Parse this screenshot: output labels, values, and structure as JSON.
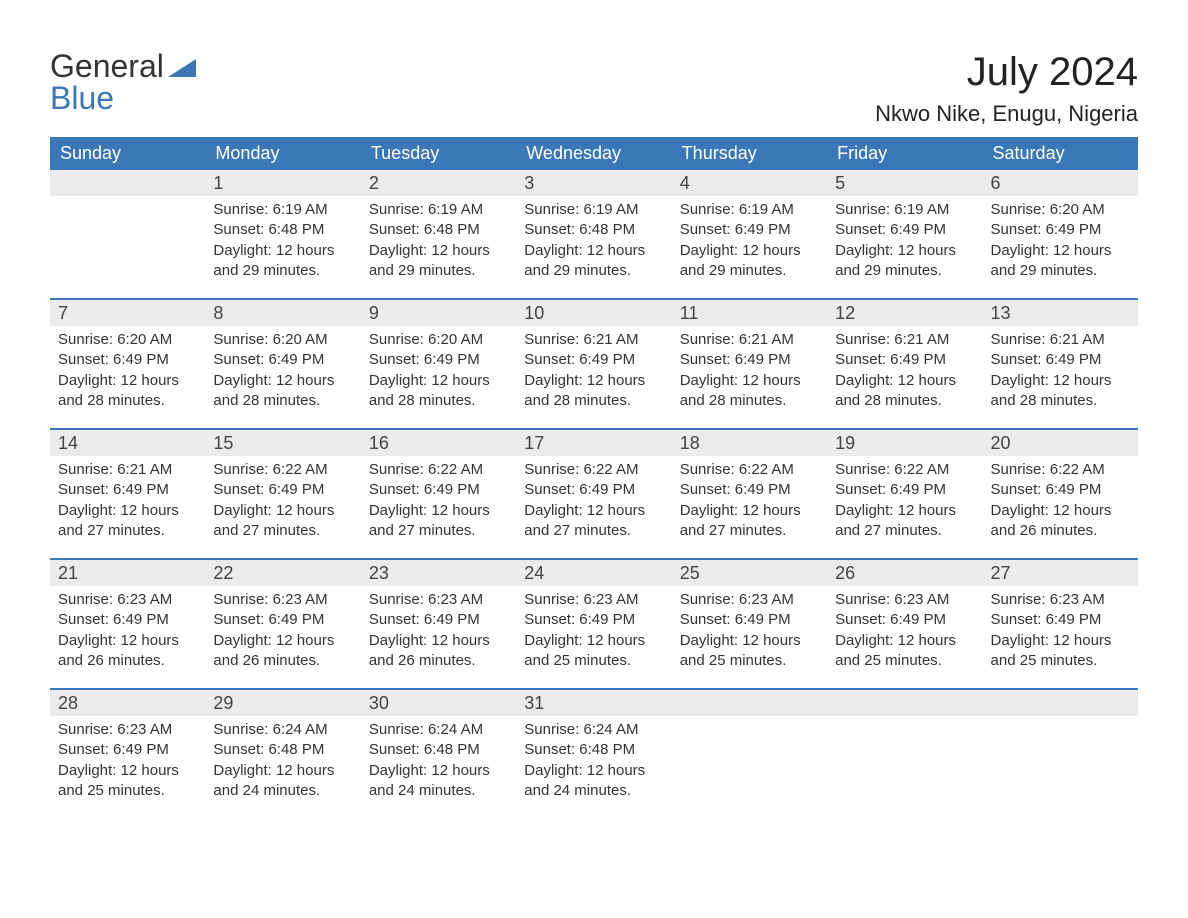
{
  "branding": {
    "logo_word1": "General",
    "logo_word2": "Blue",
    "logo_word1_color": "#333333",
    "logo_word2_color": "#3a77b7",
    "logo_triangle_color": "#3a77b7"
  },
  "header": {
    "month_title": "July 2024",
    "location": "Nkwo Nike, Enugu, Nigeria"
  },
  "styling": {
    "header_bg": "#3a77b7",
    "header_text_color": "#ffffff",
    "daynum_bg": "#ebebeb",
    "daynum_color": "#444444",
    "body_text_color": "#333333",
    "week_border_color": "#3a77b7",
    "page_bg": "#ffffff",
    "month_title_fontsize": 40,
    "location_fontsize": 22,
    "dayheader_fontsize": 18,
    "cell_fontsize": 15
  },
  "day_names": [
    "Sunday",
    "Monday",
    "Tuesday",
    "Wednesday",
    "Thursday",
    "Friday",
    "Saturday"
  ],
  "weeks": [
    [
      {
        "day": "",
        "sunrise": "",
        "sunset": "",
        "daylight": ""
      },
      {
        "day": "1",
        "sunrise": "Sunrise: 6:19 AM",
        "sunset": "Sunset: 6:48 PM",
        "daylight": "Daylight: 12 hours and 29 minutes."
      },
      {
        "day": "2",
        "sunrise": "Sunrise: 6:19 AM",
        "sunset": "Sunset: 6:48 PM",
        "daylight": "Daylight: 12 hours and 29 minutes."
      },
      {
        "day": "3",
        "sunrise": "Sunrise: 6:19 AM",
        "sunset": "Sunset: 6:48 PM",
        "daylight": "Daylight: 12 hours and 29 minutes."
      },
      {
        "day": "4",
        "sunrise": "Sunrise: 6:19 AM",
        "sunset": "Sunset: 6:49 PM",
        "daylight": "Daylight: 12 hours and 29 minutes."
      },
      {
        "day": "5",
        "sunrise": "Sunrise: 6:19 AM",
        "sunset": "Sunset: 6:49 PM",
        "daylight": "Daylight: 12 hours and 29 minutes."
      },
      {
        "day": "6",
        "sunrise": "Sunrise: 6:20 AM",
        "sunset": "Sunset: 6:49 PM",
        "daylight": "Daylight: 12 hours and 29 minutes."
      }
    ],
    [
      {
        "day": "7",
        "sunrise": "Sunrise: 6:20 AM",
        "sunset": "Sunset: 6:49 PM",
        "daylight": "Daylight: 12 hours and 28 minutes."
      },
      {
        "day": "8",
        "sunrise": "Sunrise: 6:20 AM",
        "sunset": "Sunset: 6:49 PM",
        "daylight": "Daylight: 12 hours and 28 minutes."
      },
      {
        "day": "9",
        "sunrise": "Sunrise: 6:20 AM",
        "sunset": "Sunset: 6:49 PM",
        "daylight": "Daylight: 12 hours and 28 minutes."
      },
      {
        "day": "10",
        "sunrise": "Sunrise: 6:21 AM",
        "sunset": "Sunset: 6:49 PM",
        "daylight": "Daylight: 12 hours and 28 minutes."
      },
      {
        "day": "11",
        "sunrise": "Sunrise: 6:21 AM",
        "sunset": "Sunset: 6:49 PM",
        "daylight": "Daylight: 12 hours and 28 minutes."
      },
      {
        "day": "12",
        "sunrise": "Sunrise: 6:21 AM",
        "sunset": "Sunset: 6:49 PM",
        "daylight": "Daylight: 12 hours and 28 minutes."
      },
      {
        "day": "13",
        "sunrise": "Sunrise: 6:21 AM",
        "sunset": "Sunset: 6:49 PM",
        "daylight": "Daylight: 12 hours and 28 minutes."
      }
    ],
    [
      {
        "day": "14",
        "sunrise": "Sunrise: 6:21 AM",
        "sunset": "Sunset: 6:49 PM",
        "daylight": "Daylight: 12 hours and 27 minutes."
      },
      {
        "day": "15",
        "sunrise": "Sunrise: 6:22 AM",
        "sunset": "Sunset: 6:49 PM",
        "daylight": "Daylight: 12 hours and 27 minutes."
      },
      {
        "day": "16",
        "sunrise": "Sunrise: 6:22 AM",
        "sunset": "Sunset: 6:49 PM",
        "daylight": "Daylight: 12 hours and 27 minutes."
      },
      {
        "day": "17",
        "sunrise": "Sunrise: 6:22 AM",
        "sunset": "Sunset: 6:49 PM",
        "daylight": "Daylight: 12 hours and 27 minutes."
      },
      {
        "day": "18",
        "sunrise": "Sunrise: 6:22 AM",
        "sunset": "Sunset: 6:49 PM",
        "daylight": "Daylight: 12 hours and 27 minutes."
      },
      {
        "day": "19",
        "sunrise": "Sunrise: 6:22 AM",
        "sunset": "Sunset: 6:49 PM",
        "daylight": "Daylight: 12 hours and 27 minutes."
      },
      {
        "day": "20",
        "sunrise": "Sunrise: 6:22 AM",
        "sunset": "Sunset: 6:49 PM",
        "daylight": "Daylight: 12 hours and 26 minutes."
      }
    ],
    [
      {
        "day": "21",
        "sunrise": "Sunrise: 6:23 AM",
        "sunset": "Sunset: 6:49 PM",
        "daylight": "Daylight: 12 hours and 26 minutes."
      },
      {
        "day": "22",
        "sunrise": "Sunrise: 6:23 AM",
        "sunset": "Sunset: 6:49 PM",
        "daylight": "Daylight: 12 hours and 26 minutes."
      },
      {
        "day": "23",
        "sunrise": "Sunrise: 6:23 AM",
        "sunset": "Sunset: 6:49 PM",
        "daylight": "Daylight: 12 hours and 26 minutes."
      },
      {
        "day": "24",
        "sunrise": "Sunrise: 6:23 AM",
        "sunset": "Sunset: 6:49 PM",
        "daylight": "Daylight: 12 hours and 25 minutes."
      },
      {
        "day": "25",
        "sunrise": "Sunrise: 6:23 AM",
        "sunset": "Sunset: 6:49 PM",
        "daylight": "Daylight: 12 hours and 25 minutes."
      },
      {
        "day": "26",
        "sunrise": "Sunrise: 6:23 AM",
        "sunset": "Sunset: 6:49 PM",
        "daylight": "Daylight: 12 hours and 25 minutes."
      },
      {
        "day": "27",
        "sunrise": "Sunrise: 6:23 AM",
        "sunset": "Sunset: 6:49 PM",
        "daylight": "Daylight: 12 hours and 25 minutes."
      }
    ],
    [
      {
        "day": "28",
        "sunrise": "Sunrise: 6:23 AM",
        "sunset": "Sunset: 6:49 PM",
        "daylight": "Daylight: 12 hours and 25 minutes."
      },
      {
        "day": "29",
        "sunrise": "Sunrise: 6:24 AM",
        "sunset": "Sunset: 6:48 PM",
        "daylight": "Daylight: 12 hours and 24 minutes."
      },
      {
        "day": "30",
        "sunrise": "Sunrise: 6:24 AM",
        "sunset": "Sunset: 6:48 PM",
        "daylight": "Daylight: 12 hours and 24 minutes."
      },
      {
        "day": "31",
        "sunrise": "Sunrise: 6:24 AM",
        "sunset": "Sunset: 6:48 PM",
        "daylight": "Daylight: 12 hours and 24 minutes."
      },
      {
        "day": "",
        "sunrise": "",
        "sunset": "",
        "daylight": ""
      },
      {
        "day": "",
        "sunrise": "",
        "sunset": "",
        "daylight": ""
      },
      {
        "day": "",
        "sunrise": "",
        "sunset": "",
        "daylight": ""
      }
    ]
  ]
}
